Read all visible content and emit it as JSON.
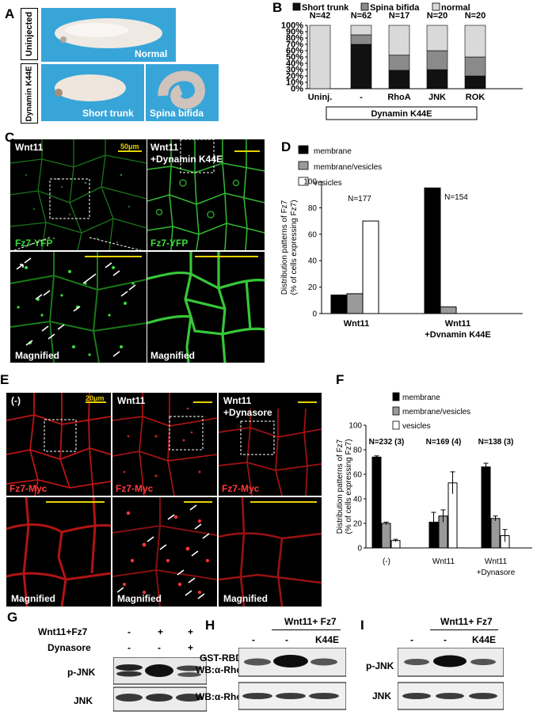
{
  "panels": {
    "A": {
      "label": "A",
      "row_labels": [
        "Uninjected",
        "Dynamin K44E"
      ],
      "photo_labels": [
        "Normal",
        "Short trunk",
        "Spina bifida"
      ]
    },
    "B": {
      "label": "B"
    },
    "C": {
      "label": "C",
      "titles": [
        "Wnt11",
        "Wnt11",
        "+Dynamin K44E"
      ],
      "scale_bar": "50μm",
      "channel": "Fz7-YFP",
      "magnified": "Magnified"
    },
    "D": {
      "label": "D"
    },
    "E": {
      "label": "E",
      "titles": [
        "(-)",
        "Wnt11",
        "Wnt11",
        "+Dynasore"
      ],
      "scale_bar": "20μm",
      "channel": "Fz7-Myc",
      "magnified": "Magnified"
    },
    "F": {
      "label": "F"
    },
    "G": {
      "label": "G",
      "row_labels": [
        "Wnt11+Fz7",
        "Dynasore"
      ],
      "signs": [
        [
          "-",
          "+",
          "+"
        ],
        [
          "-",
          "-",
          "+"
        ]
      ],
      "blots": [
        "p-JNK",
        "JNK"
      ]
    },
    "H": {
      "label": "H",
      "header": "Wnt11+ Fz7",
      "lanes": [
        "-",
        "-",
        "K44E"
      ],
      "blots": [
        "GST-RBD",
        "WB:α-RhoA",
        "WB:α-RhoA"
      ]
    },
    "I": {
      "label": "I",
      "header": "Wnt11+ Fz7",
      "lanes": [
        "-",
        "-",
        "K44E"
      ],
      "blots": [
        "p-JNK",
        "JNK"
      ]
    }
  },
  "colors": {
    "fz7_yfp": "#3ddc3d",
    "fz7_myc": "#ff2a2a",
    "arrow": "#ffffff",
    "scale_yellow": "#e6d200"
  },
  "chart_data": [
    {
      "panel": "B",
      "type": "bar",
      "stacked": true,
      "categories": [
        "Uninj.",
        "-",
        "RhoA",
        "JNK",
        "ROK"
      ],
      "n_labels": [
        "N=42",
        "N=62",
        "N=17",
        "N=20",
        "N=20"
      ],
      "group_label": "Dynamin K44E",
      "series": [
        {
          "name": "Short trunk",
          "color": "#111111",
          "values": [
            0,
            70,
            29,
            30,
            20
          ]
        },
        {
          "name": "Spina bifida",
          "color": "#8a8a8a",
          "values": [
            0,
            15,
            24,
            30,
            30
          ]
        },
        {
          "name": "normal",
          "color": "#d9d9d9",
          "values": [
            100,
            15,
            47,
            40,
            50
          ]
        }
      ],
      "yticks": [
        "0%",
        "10%",
        "20%",
        "30%",
        "40%",
        "50%",
        "60%",
        "70%",
        "80%",
        "90%",
        "100%"
      ],
      "ylim": [
        0,
        100
      ],
      "legend": "top"
    },
    {
      "panel": "D",
      "type": "bar",
      "categories": [
        "Wnt11",
        "Wnt11\n+Dynamin K44E"
      ],
      "n_labels": [
        "N=177",
        "N=154"
      ],
      "series": [
        {
          "name": "membrane",
          "color": "#000000",
          "values": [
            14,
            95
          ]
        },
        {
          "name": "membrane/vesicles",
          "color": "#9a9a9a",
          "values": [
            15,
            5
          ]
        },
        {
          "name": "vesicles",
          "color": "#ffffff",
          "values": [
            70,
            0
          ]
        }
      ],
      "ylabel": "Distribution patterns of Fz7\n(% of cells expressing Fz7)",
      "yticks": [
        0,
        20,
        40,
        60,
        80,
        100
      ],
      "ylim": [
        0,
        100
      ],
      "legend": "top-left"
    },
    {
      "panel": "F",
      "type": "bar",
      "categories": [
        "(-)",
        "Wnt11",
        "Wnt11\n+Dynasore"
      ],
      "n_labels": [
        "N=232 (3)",
        "N=169 (4)",
        "N=138 (3)"
      ],
      "series": [
        {
          "name": "membrane",
          "color": "#000000",
          "values": [
            74,
            21,
            66
          ],
          "errors": [
            1,
            8,
            3
          ]
        },
        {
          "name": "membrane/vesicles",
          "color": "#9a9a9a",
          "values": [
            20,
            26,
            24
          ],
          "errors": [
            1,
            5,
            2
          ]
        },
        {
          "name": "vesicles",
          "color": "#ffffff",
          "values": [
            6,
            53,
            10
          ],
          "errors": [
            1,
            9,
            5
          ]
        }
      ],
      "ylabel": "Distribution patterns of Fz7\n(% of cells expressing Fz7)",
      "yticks": [
        0,
        20,
        40,
        60,
        80,
        100
      ],
      "ylim": [
        0,
        100
      ],
      "legend": "top-left"
    }
  ]
}
